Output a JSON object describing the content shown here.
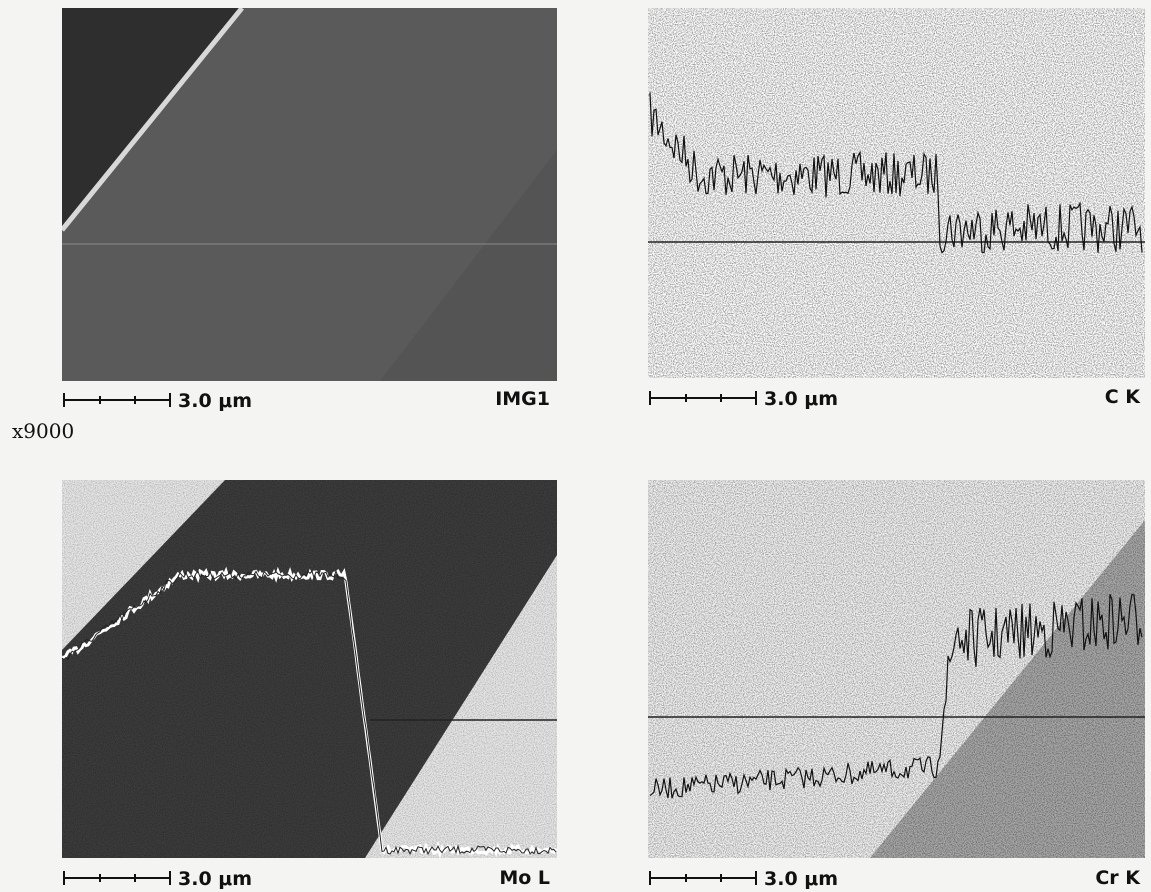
{
  "magnification": "x9000",
  "panels": [
    {
      "label": "IMG1",
      "scale": "3.0 μm"
    },
    {
      "label": "C K",
      "scale": "3.0 μm"
    },
    {
      "label": "Mo L",
      "scale": "3.0 μm"
    },
    {
      "label": "Cr K",
      "scale": "3.0 μm"
    }
  ]
}
